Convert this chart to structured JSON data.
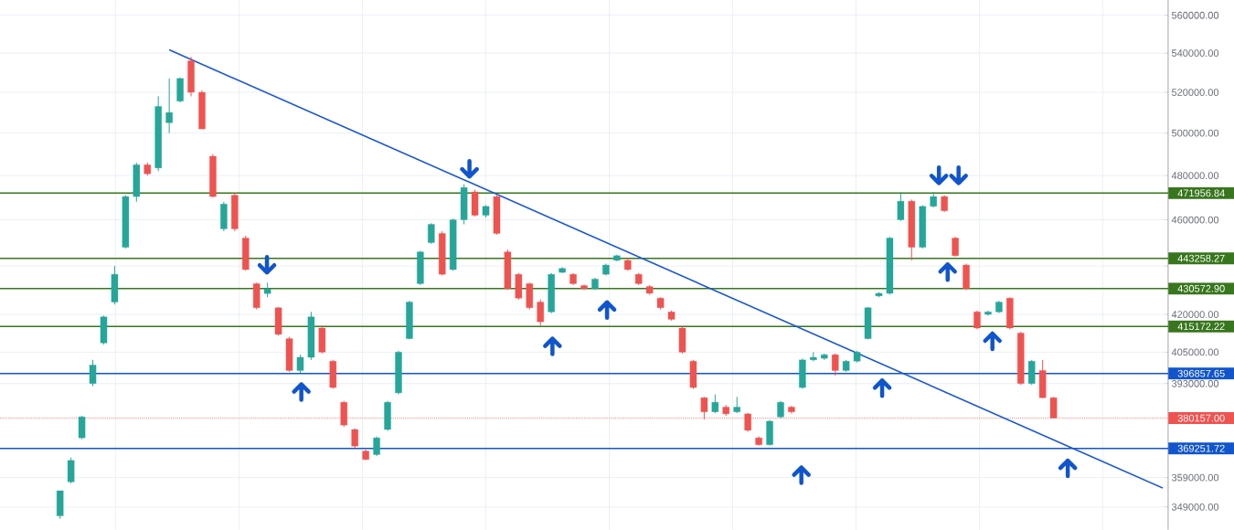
{
  "chart_data": {
    "type": "candlestick",
    "categories": [
      null,
      null,
      null,
      null,
      null,
      null,
      null,
      null,
      null,
      null,
      null,
      null,
      null,
      null,
      null,
      null,
      null,
      null,
      null,
      null,
      null,
      null,
      null,
      null,
      null,
      null,
      null,
      null,
      null,
      null,
      null,
      null,
      null,
      null,
      null,
      null,
      null,
      null,
      null,
      null,
      null,
      null,
      null,
      null,
      null,
      null,
      null,
      null,
      null,
      null,
      null,
      null,
      null,
      null,
      null,
      null,
      null,
      null,
      null,
      null,
      null,
      null,
      null,
      null,
      null,
      null,
      null,
      null,
      null,
      null,
      null,
      null,
      null,
      null,
      null,
      null,
      null,
      null,
      null,
      null,
      null,
      null,
      null,
      null,
      null,
      null,
      null,
      null,
      null,
      null,
      null,
      null,
      null,
      null,
      null,
      null,
      null,
      null,
      null,
      null,
      null,
      null,
      null,
      null,
      null,
      null,
      null
    ],
    "ohlc": [
      null,
      null,
      null,
      null,
      null,
      [
        346000,
        354500,
        345000,
        354500
      ],
      [
        357500,
        366000,
        357000,
        365000
      ],
      [
        373000,
        381000,
        372500,
        380600
      ],
      [
        393000,
        402000,
        392000,
        400000
      ],
      [
        408600,
        419500,
        408000,
        419000
      ],
      [
        425000,
        440000,
        424000,
        436500
      ],
      [
        448000,
        471000,
        447500,
        470400
      ],
      [
        470400,
        486000,
        468000,
        485000
      ],
      [
        485000,
        486000,
        480000,
        480800
      ],
      [
        483500,
        518000,
        482000,
        513000
      ],
      [
        505000,
        527000,
        500000,
        510000
      ],
      [
        515600,
        527500,
        515000,
        527000
      ],
      [
        536000,
        538000,
        518000,
        520000
      ],
      [
        520000,
        521000,
        502000,
        502000
      ],
      [
        489000,
        490000,
        470000,
        470400
      ],
      [
        456000,
        468000,
        455000,
        467000
      ],
      [
        471000,
        472000,
        455000,
        456000
      ],
      [
        452000,
        453000,
        438000,
        438500
      ],
      [
        432600,
        433000,
        422000,
        422700
      ],
      [
        428500,
        433000,
        427000,
        430500
      ],
      [
        422700,
        423000,
        411500,
        412000
      ],
      [
        410300,
        411000,
        397500,
        398000
      ],
      [
        398000,
        404000,
        397000,
        403000
      ],
      [
        403000,
        421000,
        402000,
        419000
      ],
      [
        414500,
        415500,
        404500,
        405000
      ],
      [
        401500,
        402000,
        391000,
        391500
      ],
      [
        386000,
        386500,
        377000,
        377600
      ],
      [
        376000,
        376500,
        369500,
        370000
      ],
      [
        368300,
        368800,
        365000,
        365300
      ],
      [
        367000,
        373500,
        366500,
        373000
      ],
      [
        376000,
        386500,
        375500,
        386000
      ],
      [
        389500,
        405500,
        389000,
        405000
      ],
      [
        410300,
        425500,
        410000,
        425000
      ],
      [
        432600,
        446500,
        432000,
        446000
      ],
      [
        450000,
        458500,
        449500,
        458000
      ],
      [
        454000,
        455000,
        436000,
        436500
      ],
      [
        438500,
        460500,
        438000,
        460000
      ],
      [
        460000,
        476000,
        458000,
        474500
      ],
      [
        472500,
        473500,
        461500,
        462000
      ],
      [
        462000,
        466500,
        461000,
        466000
      ],
      [
        470400,
        471000,
        453500,
        454000
      ],
      [
        446000,
        447000,
        430000,
        430500
      ],
      [
        436500,
        437000,
        426000,
        426600
      ],
      [
        432600,
        433000,
        422000,
        422700
      ],
      [
        425000,
        426000,
        415500,
        417000
      ],
      [
        421000,
        437000,
        420500,
        436500
      ],
      [
        437300,
        439500,
        437000,
        439000
      ],
      [
        436500,
        437000,
        432000,
        432600
      ],
      [
        431800,
        432200,
        430000,
        430500
      ],
      [
        430500,
        435000,
        430000,
        434500
      ],
      [
        436500,
        441000,
        436000,
        440400
      ],
      [
        442400,
        444800,
        442000,
        444400
      ],
      [
        442400,
        443000,
        438000,
        438500
      ],
      [
        436500,
        437000,
        432000,
        432600
      ],
      [
        431400,
        432000,
        428000,
        428600
      ],
      [
        426600,
        427000,
        422000,
        422700
      ],
      [
        421000,
        421500,
        417500,
        418000
      ],
      [
        414500,
        415000,
        404500,
        405000
      ],
      [
        401500,
        402000,
        391000,
        391500
      ],
      [
        387700,
        388000,
        379700,
        382400
      ],
      [
        382400,
        388900,
        382000,
        386000
      ],
      [
        384200,
        385000,
        381000,
        381700
      ],
      [
        382400,
        388000,
        382000,
        384200
      ],
      [
        381700,
        382000,
        375200,
        375700
      ],
      [
        373000,
        373500,
        370200,
        370500
      ],
      [
        370500,
        379500,
        370200,
        379000
      ],
      [
        380600,
        386500,
        380000,
        386000
      ],
      [
        384200,
        384700,
        381800,
        382400
      ],
      [
        391500,
        402500,
        391000,
        402000
      ],
      [
        402000,
        405000,
        401500,
        403000
      ],
      [
        402600,
        404500,
        402000,
        404000
      ],
      [
        404000,
        404500,
        396000,
        398000
      ],
      [
        398000,
        402000,
        397500,
        401500
      ],
      [
        401500,
        405500,
        401000,
        405000
      ],
      [
        410300,
        423000,
        410000,
        422700
      ],
      [
        427500,
        429000,
        427000,
        428600
      ],
      [
        428600,
        452500,
        428000,
        452000
      ],
      [
        460000,
        472500,
        459500,
        468300
      ],
      [
        468300,
        469000,
        442400,
        448000
      ],
      [
        448000,
        466500,
        447500,
        466000
      ],
      [
        466000,
        472500,
        465500,
        470400
      ],
      [
        470400,
        471000,
        463500,
        464000
      ],
      [
        452000,
        452500,
        444000,
        444400
      ],
      [
        440400,
        441000,
        430000,
        430500
      ],
      [
        421000,
        421500,
        414000,
        414500
      ],
      [
        420000,
        421500,
        419500,
        421000
      ],
      [
        421000,
        425500,
        420500,
        425000
      ],
      [
        426600,
        427000,
        414000,
        414500
      ],
      [
        412500,
        413000,
        392500,
        393000
      ],
      [
        393000,
        402000,
        392500,
        401500
      ],
      [
        398000,
        402000,
        387500,
        387700
      ],
      [
        387700,
        388000,
        380157,
        380157
      ],
      null,
      null,
      null,
      null,
      null,
      null,
      null,
      null,
      null,
      null
    ],
    "series": [
      {
        "type": "line",
        "color": "#1a56d6",
        "values": [
          null,
          null,
          null,
          null,
          null,
          null,
          null,
          null,
          null,
          null,
          null,
          null,
          null,
          null,
          null,
          541700,
          null,
          null,
          null,
          null,
          null,
          null,
          null,
          null,
          null,
          null,
          null,
          null,
          null,
          null,
          null,
          null,
          null,
          null,
          null,
          null,
          null,
          null,
          null,
          null,
          null,
          null,
          null,
          null,
          null,
          null,
          null,
          null,
          null,
          null,
          null,
          null,
          null,
          null,
          null,
          null,
          null,
          null,
          null,
          null,
          null,
          null,
          null,
          null,
          null,
          null,
          null,
          null,
          null,
          null,
          null,
          null,
          null,
          null,
          null,
          null,
          null,
          null,
          null,
          null,
          null,
          null,
          null,
          null,
          null,
          null,
          null,
          null,
          null,
          null,
          null,
          null,
          null,
          null,
          null,
          null,
          null,
          null,
          null,
          null,
          null,
          null,
          null,
          null,
          null,
          null,
          355400
        ]
      }
    ],
    "ylim": [
      341400,
      568400
    ],
    "yticks": [
      {
        "value": 349000,
        "label": "349000.00"
      },
      {
        "value": 359000,
        "label": "359000.00"
      },
      {
        "value": 393000,
        "label": "393000.00"
      },
      {
        "value": 405000,
        "label": "405000.00"
      },
      {
        "value": 420000,
        "label": "420000.00"
      },
      {
        "value": 440000,
        "label": null
      },
      {
        "value": 460000,
        "label": "460000.00"
      },
      {
        "value": 480000,
        "label": "480000.00"
      },
      {
        "value": 500000,
        "label": "500000.00"
      },
      {
        "value": 520000,
        "label": "520000.00"
      },
      {
        "value": 540000,
        "label": "540000.00"
      },
      {
        "value": 560000,
        "label": "560000.00"
      }
    ],
    "log": true,
    "grid": true,
    "tick_labels": "y",
    "ref_lines": [
      {
        "axis": "y",
        "value": 471956.84,
        "label": "471956.84",
        "color": "#38761d"
      },
      {
        "axis": "y",
        "value": 443258.27,
        "label": "443258.27",
        "color": "#38761d"
      },
      {
        "axis": "y",
        "value": 430572.9,
        "label": "430572.90",
        "color": "#38761d"
      },
      {
        "axis": "y",
        "value": 415172.22,
        "label": "415172.22",
        "color": "#38761d"
      },
      {
        "axis": "y",
        "value": 396857.65,
        "label": "396857.65",
        "color": "#1155cc"
      },
      {
        "axis": "y",
        "value": 380157.0,
        "label": "380157.00",
        "color": "#ef5350",
        "line_style": "dotted"
      },
      {
        "axis": "y",
        "value": 369251.72,
        "label": "369251.72",
        "color": "#1155cc"
      }
    ]
  }
}
